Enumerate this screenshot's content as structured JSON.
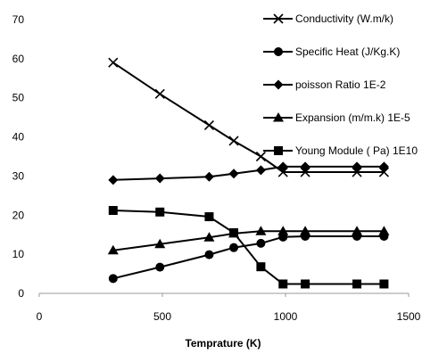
{
  "chart_data": {
    "type": "line",
    "title": "",
    "xlabel": "Temprature (K)",
    "ylabel": "",
    "xlim": [
      0,
      1500
    ],
    "ylim": [
      0,
      70
    ],
    "x_ticks": [
      0,
      500,
      1000,
      1500
    ],
    "y_ticks": [
      0,
      10,
      20,
      30,
      40,
      50,
      60,
      70
    ],
    "grid": false,
    "legend_position": "top-right",
    "series": [
      {
        "name": "Conductivity  (W.m/k)",
        "marker": "x",
        "points": [
          [
            300,
            59
          ],
          [
            490,
            51
          ],
          [
            690,
            43
          ],
          [
            790,
            39
          ],
          [
            900,
            35
          ],
          [
            990,
            31
          ],
          [
            1080,
            31
          ],
          [
            1290,
            31
          ],
          [
            1400,
            31
          ]
        ]
      },
      {
        "name": "Specific Heat (J/Kg.K)",
        "marker": "circle",
        "points": [
          [
            300,
            3.8
          ],
          [
            490,
            6.7
          ],
          [
            690,
            9.9
          ],
          [
            790,
            11.7
          ],
          [
            900,
            12.8
          ],
          [
            990,
            14.4
          ],
          [
            1080,
            14.6
          ],
          [
            1290,
            14.6
          ],
          [
            1400,
            14.6
          ]
        ]
      },
      {
        "name": "poisson Ratio 1E-2",
        "marker": "diamond",
        "points": [
          [
            300,
            29
          ],
          [
            490,
            29.4
          ],
          [
            690,
            29.8
          ],
          [
            790,
            30.6
          ],
          [
            900,
            31.5
          ],
          [
            990,
            32.4
          ],
          [
            1080,
            32.4
          ],
          [
            1290,
            32.4
          ],
          [
            1400,
            32.4
          ]
        ]
      },
      {
        "name": "Expansion (m/m.k) 1E-5",
        "marker": "triangle",
        "points": [
          [
            300,
            11
          ],
          [
            490,
            12.6
          ],
          [
            690,
            14.3
          ],
          [
            790,
            15.3
          ],
          [
            900,
            15.9
          ],
          [
            990,
            15.9
          ],
          [
            1080,
            15.9
          ],
          [
            1290,
            15.9
          ],
          [
            1400,
            15.9
          ]
        ]
      },
      {
        "name": "Young Module ( Pa) 1E10",
        "marker": "square",
        "points": [
          [
            300,
            21.2
          ],
          [
            490,
            20.8
          ],
          [
            690,
            19.6
          ],
          [
            790,
            15.5
          ],
          [
            900,
            6.8
          ],
          [
            990,
            2.4
          ],
          [
            1080,
            2.4
          ],
          [
            1290,
            2.4
          ],
          [
            1400,
            2.4
          ]
        ]
      }
    ]
  }
}
